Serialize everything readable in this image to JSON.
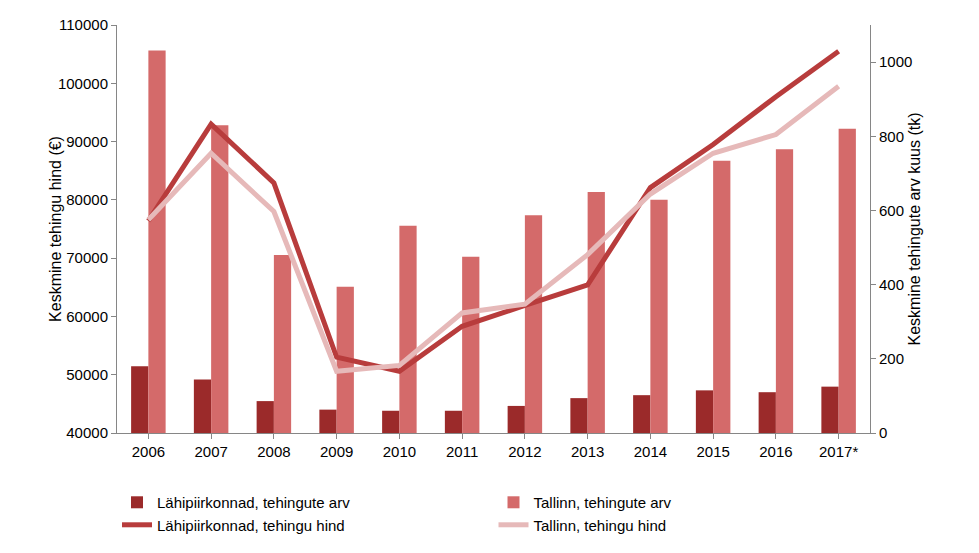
{
  "chart_data": {
    "type": "bar",
    "categories": [
      "2006",
      "2007",
      "2008",
      "2009",
      "2010",
      "2011",
      "2012",
      "2013",
      "2014",
      "2015",
      "2016",
      "2017*"
    ],
    "y_label": "Keskmine tehingu hind (€)",
    "y2_label": "Keskmine tehingute arv kuus (tk)",
    "ylim": [
      40000,
      110000
    ],
    "yticks": [
      40000,
      50000,
      60000,
      70000,
      80000,
      90000,
      100000,
      110000
    ],
    "y2lim": [
      0,
      1100
    ],
    "y2ticks": [
      0,
      200,
      400,
      600,
      800,
      1000
    ],
    "grid": false,
    "legend": "bottom",
    "series": [
      {
        "name": "Lähipiirkonnad, tehingute arv",
        "type": "bar",
        "axis": "y2",
        "color": "#9b2a2a",
        "values": [
          180,
          144,
          86,
          63,
          60,
          60,
          73,
          94,
          102,
          115,
          110,
          125
        ]
      },
      {
        "name": "Tallinn, tehingute arv",
        "type": "bar",
        "axis": "y2",
        "color": "#d46a6a",
        "values": [
          1031,
          830,
          480,
          394,
          559,
          475,
          587,
          650,
          629,
          734,
          765,
          820
        ]
      },
      {
        "name": "Lähipiirkonnad, tehingu hind",
        "type": "line",
        "color": "#b83c3c",
        "values": [
          76400,
          93000,
          82900,
          53000,
          50600,
          58300,
          61900,
          65400,
          82100,
          89500,
          97700,
          105500
        ]
      },
      {
        "name": "Tallinn, tehingu hind",
        "type": "line",
        "color": "#e6b9b9",
        "values": [
          76600,
          88000,
          78000,
          50600,
          51600,
          60600,
          62100,
          70600,
          81000,
          88000,
          91200,
          99500
        ]
      }
    ]
  }
}
